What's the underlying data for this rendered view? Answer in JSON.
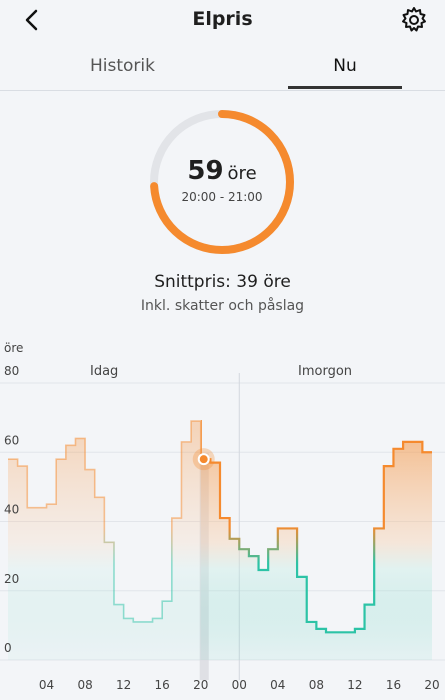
{
  "header": {
    "title": "Elpris",
    "back_icon": "chevron-left-icon",
    "settings_icon": "gear-icon"
  },
  "tabs": [
    {
      "label": "Historik",
      "active": false
    },
    {
      "label": "Nu",
      "active": true
    }
  ],
  "current": {
    "price": "59",
    "unit": "öre",
    "time_range": "20:00 - 21:00",
    "gauge_fraction": 0.74,
    "accent_color": "#f58a2e"
  },
  "average": {
    "text": "Snittpris: 39 öre",
    "subtext": "Inkl. skatter och påslag"
  },
  "chart_data": {
    "type": "line",
    "step": true,
    "unit_label": "öre",
    "ylim": [
      0,
      80
    ],
    "y_ticks": [
      "0",
      "20",
      "40",
      "60",
      "80"
    ],
    "x_ticks": [
      "04",
      "08",
      "12",
      "16",
      "20",
      "00",
      "04",
      "08",
      "12",
      "16",
      "20"
    ],
    "day_labels": [
      "Idag",
      "Imorgon"
    ],
    "current_hour": 20,
    "series": [
      {
        "values": [
          58,
          56,
          44,
          44,
          45,
          58,
          62,
          64,
          55,
          47,
          34,
          16,
          12,
          11,
          11,
          12,
          17,
          41,
          63,
          69,
          58,
          57,
          41,
          35,
          32,
          30,
          26,
          32,
          38,
          38,
          24,
          11,
          9,
          8,
          8,
          8,
          9,
          16,
          38,
          56,
          61,
          63,
          63,
          60
        ]
      }
    ],
    "colors": {
      "high": "#f58a2e",
      "low": "#2cc3a6"
    }
  }
}
